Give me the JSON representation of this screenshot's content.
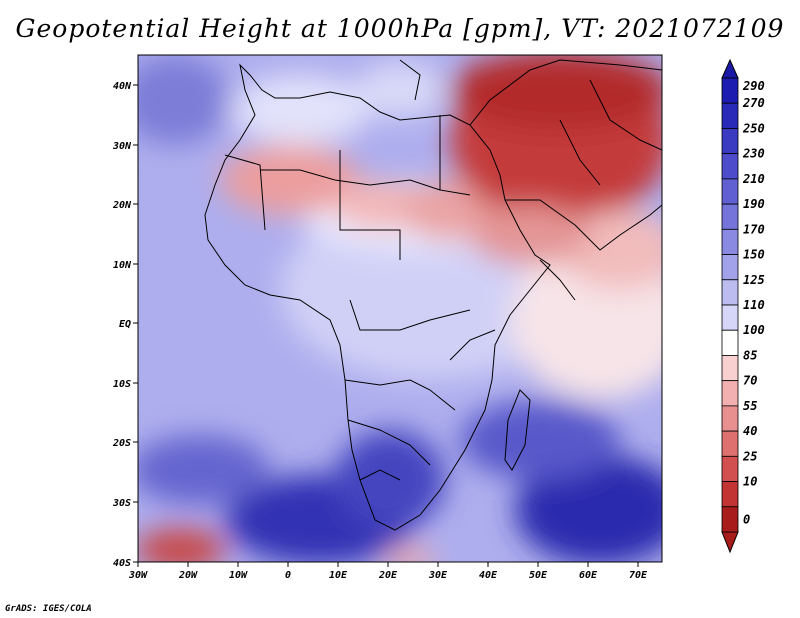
{
  "title": "Geopotential Height at 1000hPa [gpm], VT: 2021072109",
  "credit": "GrADS: IGES/COLA",
  "map": {
    "x_ticks": [
      "30W",
      "20W",
      "10W",
      "0",
      "10E",
      "20E",
      "30E",
      "40E",
      "50E",
      "60E",
      "70E"
    ],
    "y_ticks": [
      "40N",
      "30N",
      "20N",
      "10N",
      "EQ",
      "10S",
      "20S",
      "30S",
      "40S"
    ],
    "lon_range": [
      -30,
      75
    ],
    "lat_range": [
      -40,
      45
    ]
  },
  "colorbar": {
    "labels": [
      "290",
      "270",
      "250",
      "230",
      "210",
      "190",
      "170",
      "150",
      "125",
      "110",
      "100",
      "85",
      "70",
      "55",
      "40",
      "25",
      "10",
      "0"
    ],
    "colors": [
      "#1c1cb0",
      "#2a2ab8",
      "#3b3bc2",
      "#4d4dcb",
      "#6060d3",
      "#7474da",
      "#8a8ae2",
      "#a2a2ea",
      "#bcbcf1",
      "#d6d6f8",
      "#ffffff",
      "#f8d0d0",
      "#f2b0b0",
      "#e89090",
      "#de7070",
      "#d25050",
      "#c23434",
      "#a81c1c"
    ]
  }
}
